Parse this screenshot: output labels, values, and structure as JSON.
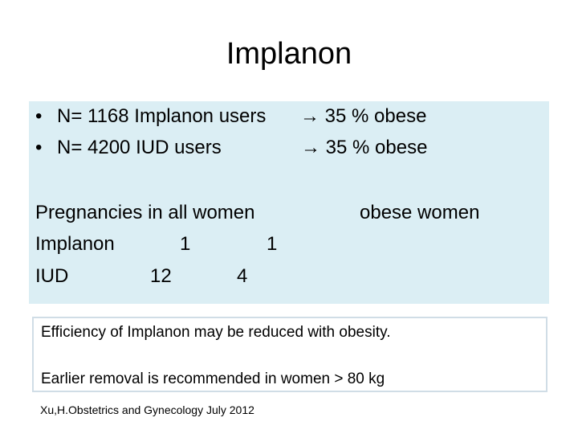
{
  "slide": {
    "title": "Implanon",
    "bullets": [
      {
        "bullet": "•",
        "text": "N= 1168 Implanon users",
        "arrow": "→ 35 % obese"
      },
      {
        "bullet": "•",
        "text": "N= 4200 IUD users",
        "arrow": "→  35 % obese"
      }
    ],
    "table": {
      "header_all": "Pregnancies  in all women",
      "header_obese": "obese women",
      "rows": [
        {
          "label": "Implanon",
          "all": "1",
          "obese": "1"
        },
        {
          "label": "IUD",
          "all": "12",
          "obese": "4"
        }
      ]
    },
    "notes": [
      "Efficiency of Implanon may be reduced with obesity.",
      "Earlier removal is recommended in women > 80 kg"
    ],
    "citation": "Xu,H.Obstetrics and Gynecology July 2012"
  },
  "colors": {
    "box_background": "#dbeef4",
    "note_border": "#d0dde6"
  }
}
